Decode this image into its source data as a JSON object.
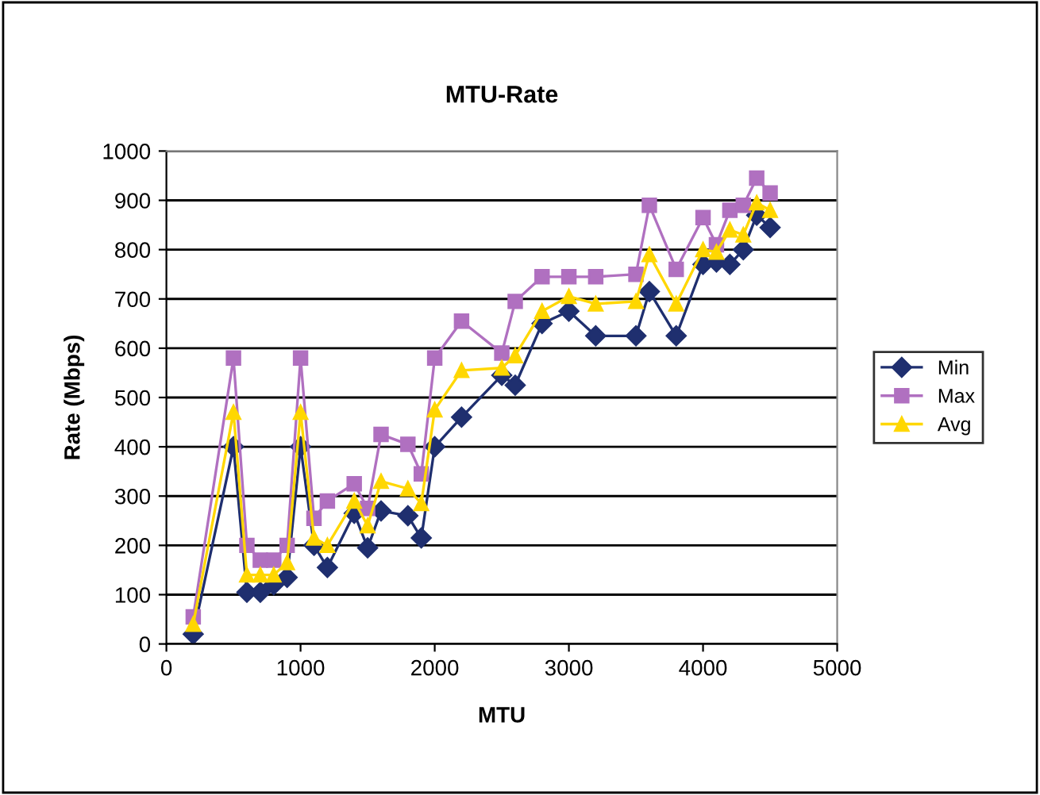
{
  "chart_data": {
    "type": "line",
    "title": "MTU-Rate",
    "xlabel": "MTU",
    "ylabel": "Rate (Mbps)",
    "x": [
      200,
      500,
      600,
      700,
      800,
      900,
      1000,
      1100,
      1200,
      1400,
      1500,
      1600,
      1800,
      1900,
      2000,
      2200,
      2500,
      2600,
      2800,
      3000,
      3200,
      3500,
      3600,
      3800,
      4000,
      4100,
      4200,
      4300,
      4400,
      4500
    ],
    "series": [
      {
        "name": "Min",
        "color": "#1f2f6f",
        "marker": "diamond",
        "values": [
          20,
          400,
          105,
          105,
          120,
          135,
          400,
          200,
          155,
          265,
          195,
          270,
          260,
          215,
          400,
          460,
          545,
          525,
          650,
          675,
          625,
          625,
          715,
          625,
          770,
          775,
          770,
          800,
          870,
          845
        ]
      },
      {
        "name": "Max",
        "color": "#b070c0",
        "marker": "square",
        "values": [
          55,
          580,
          200,
          170,
          170,
          200,
          580,
          255,
          290,
          325,
          275,
          425,
          405,
          345,
          580,
          655,
          590,
          695,
          745,
          745,
          745,
          750,
          890,
          760,
          865,
          810,
          880,
          890,
          945,
          915
        ]
      },
      {
        "name": "Avg",
        "color": "#ffd700",
        "marker": "triangle",
        "values": [
          40,
          470,
          140,
          140,
          140,
          165,
          470,
          215,
          200,
          290,
          240,
          330,
          315,
          285,
          475,
          555,
          560,
          585,
          675,
          705,
          690,
          695,
          790,
          690,
          800,
          795,
          840,
          830,
          895,
          880
        ]
      }
    ],
    "xlim": [
      0,
      5000
    ],
    "xticks": [
      0,
      1000,
      2000,
      3000,
      4000,
      5000
    ],
    "ylim": [
      0,
      1000
    ],
    "yticks": [
      0,
      100,
      200,
      300,
      400,
      500,
      600,
      700,
      800,
      900,
      1000
    ],
    "grid": "y",
    "legend": "right",
    "line_style": "solid"
  }
}
